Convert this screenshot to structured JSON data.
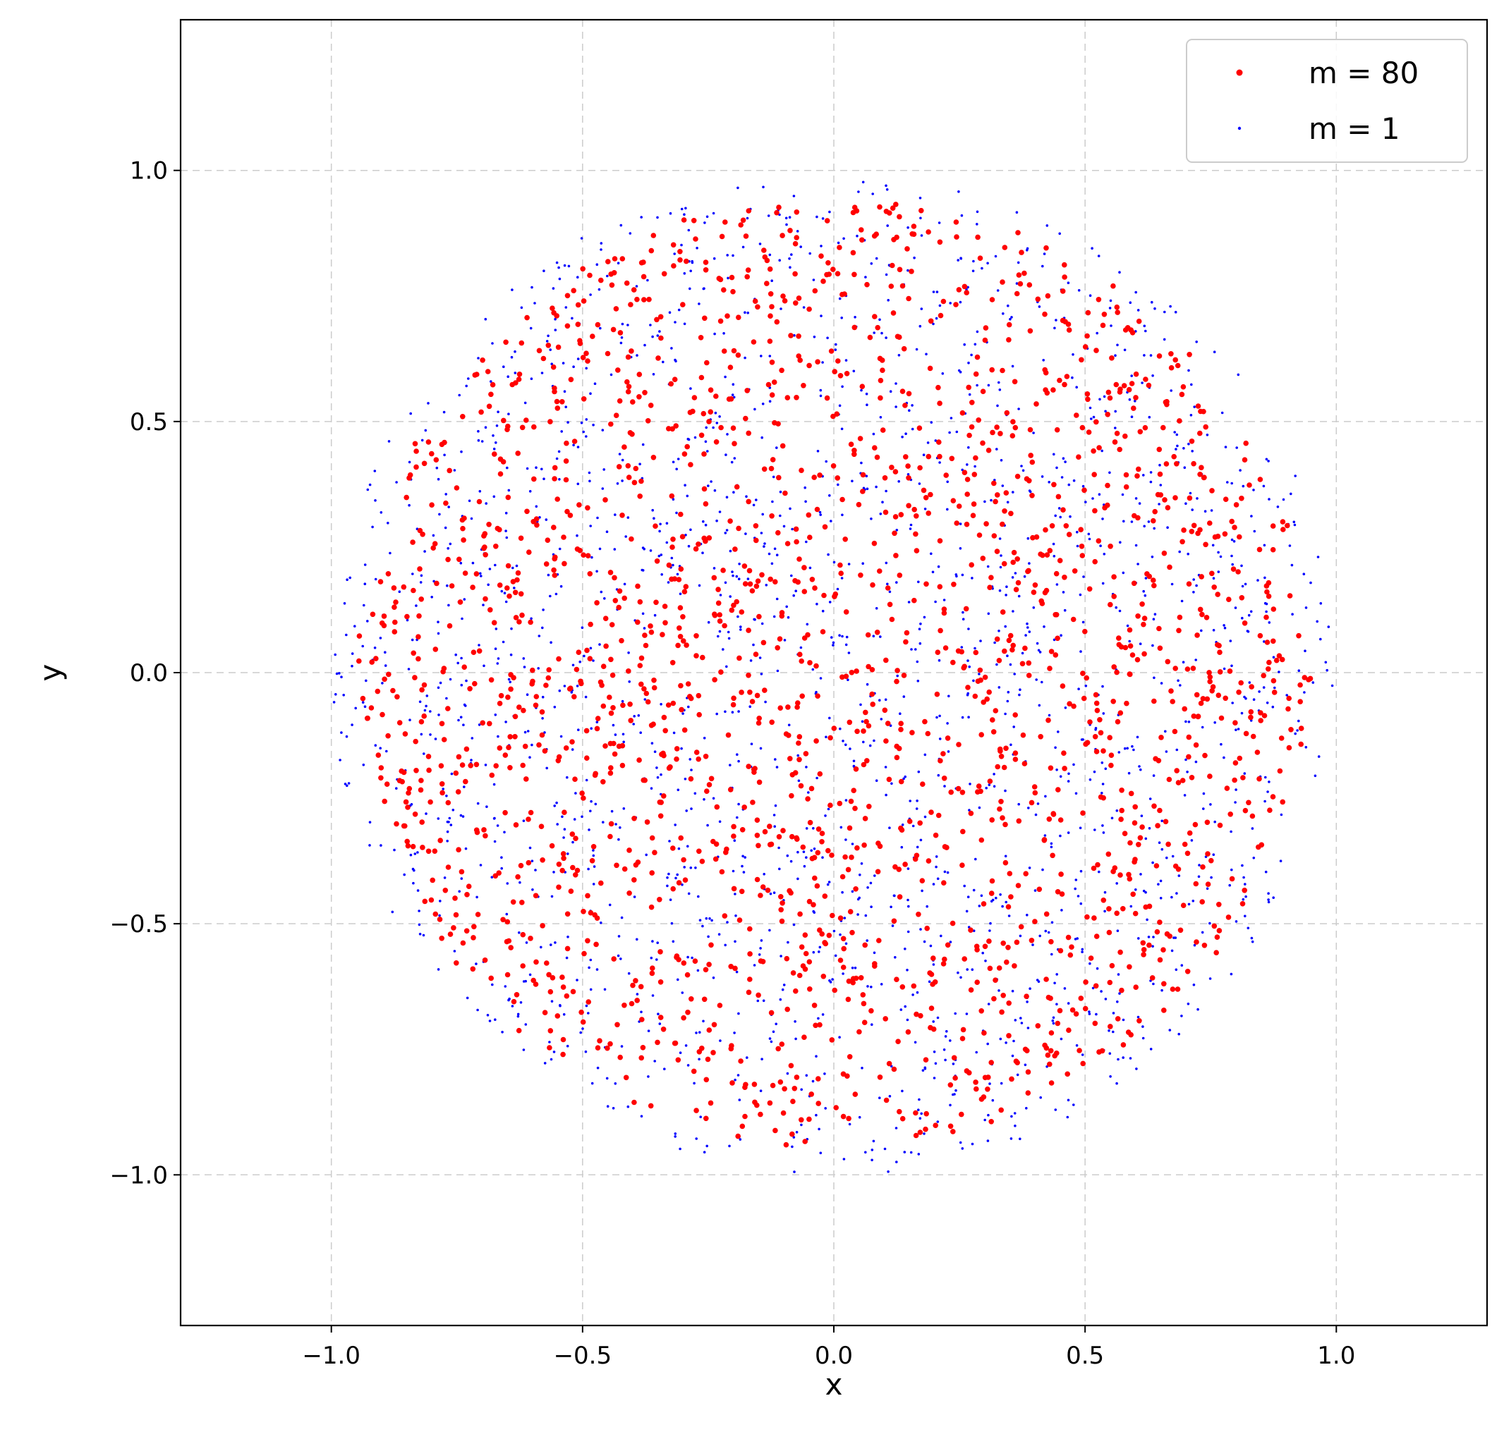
{
  "chart_data": {
    "type": "scatter",
    "xlabel": "x",
    "ylabel": "y",
    "xlim": [
      -1.3,
      1.3
    ],
    "ylim": [
      -1.3,
      1.3
    ],
    "xticks": [
      -1.0,
      -0.5,
      0.0,
      0.5,
      1.0
    ],
    "yticks": [
      -1.0,
      -0.5,
      0.0,
      0.5,
      1.0
    ],
    "xtick_labels": [
      "−1.0",
      "−0.5",
      "0.0",
      "0.5",
      "1.0"
    ],
    "ytick_labels": [
      "−1.0",
      "−0.5",
      "0.0",
      "0.5",
      "1.0"
    ],
    "grid": true,
    "legend_position": "top-right",
    "series": [
      {
        "name": "m = 80",
        "color": "#ff0000",
        "marker": "dot-large",
        "distribution": "uniform-disk",
        "radius": 0.95,
        "count": 2000,
        "seed": 80
      },
      {
        "name": "m = 1",
        "color": "#0000ff",
        "marker": "dot-small",
        "distribution": "uniform-disk",
        "radius": 1.0,
        "count": 2000,
        "seed": 1
      }
    ]
  }
}
